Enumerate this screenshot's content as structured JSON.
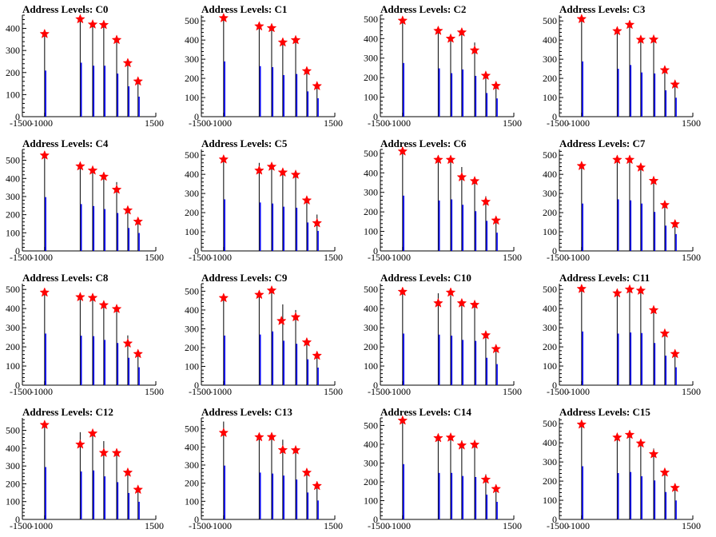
{
  "colors": {
    "histogram": "#0000ff",
    "marker": "#ff0000",
    "axis": "#000000",
    "background": "#ffffff"
  },
  "chart_data": [
    {
      "type": "bar",
      "title": "Address Levels: C0",
      "xlim": [
        -1500,
        1500
      ],
      "ylim": [
        0,
        460
      ],
      "x_ticks": [
        -1500,
        -1000,
        1500
      ],
      "y_ticks": [
        0,
        100,
        200,
        300,
        400
      ],
      "x": [
        -1000,
        -200,
        80,
        330,
        620,
        870,
        1100
      ],
      "values": [
        380,
        445,
        420,
        420,
        355,
        250,
        165
      ],
      "markers": [
        {
          "x": -1000,
          "y": 375
        },
        {
          "x": -200,
          "y": 442
        },
        {
          "x": 80,
          "y": 418
        },
        {
          "x": 330,
          "y": 416
        },
        {
          "x": 620,
          "y": 348
        },
        {
          "x": 870,
          "y": 243
        },
        {
          "x": 1100,
          "y": 160
        }
      ]
    },
    {
      "type": "bar",
      "title": "Address Levels: C1",
      "xlim": [
        -1500,
        1500
      ],
      "ylim": [
        0,
        530
      ],
      "x_ticks": [
        -1500,
        -1000,
        1500
      ],
      "y_ticks": [
        0,
        100,
        200,
        300,
        400,
        500
      ],
      "x": [
        -1000,
        -200,
        80,
        330,
        620,
        870,
        1100
      ],
      "values": [
        525,
        480,
        470,
        395,
        405,
        240,
        175
      ],
      "markers": [
        {
          "x": -1000,
          "y": 515
        },
        {
          "x": -200,
          "y": 472
        },
        {
          "x": 80,
          "y": 463
        },
        {
          "x": 330,
          "y": 388
        },
        {
          "x": 620,
          "y": 400
        },
        {
          "x": 870,
          "y": 238
        },
        {
          "x": 1100,
          "y": 160
        }
      ]
    },
    {
      "type": "bar",
      "title": "Address Levels: C2",
      "xlim": [
        -1500,
        1500
      ],
      "ylim": [
        0,
        520
      ],
      "x_ticks": [
        -1500,
        -1000,
        1500
      ],
      "y_ticks": [
        0,
        100,
        200,
        300,
        400,
        500
      ],
      "x": [
        -1000,
        -200,
        80,
        330,
        620,
        870,
        1100
      ],
      "values": [
        500,
        450,
        405,
        440,
        380,
        220,
        170
      ],
      "markers": [
        {
          "x": -1000,
          "y": 492
        },
        {
          "x": -200,
          "y": 440
        },
        {
          "x": 80,
          "y": 400
        },
        {
          "x": 330,
          "y": 432
        },
        {
          "x": 620,
          "y": 340
        },
        {
          "x": 870,
          "y": 210
        },
        {
          "x": 1100,
          "y": 158
        }
      ]
    },
    {
      "type": "bar",
      "title": "Address Levels: C3",
      "xlim": [
        -1500,
        1500
      ],
      "ylim": [
        0,
        530
      ],
      "x_ticks": [
        -1500,
        -1000,
        1500
      ],
      "y_ticks": [
        0,
        100,
        200,
        300,
        400,
        500
      ],
      "x": [
        -1000,
        -200,
        80,
        330,
        620,
        870,
        1100
      ],
      "values": [
        525,
        455,
        490,
        420,
        410,
        250,
        180
      ],
      "markers": [
        {
          "x": -1000,
          "y": 510
        },
        {
          "x": -200,
          "y": 447
        },
        {
          "x": 80,
          "y": 480
        },
        {
          "x": 330,
          "y": 402
        },
        {
          "x": 620,
          "y": 403
        },
        {
          "x": 870,
          "y": 243
        },
        {
          "x": 1100,
          "y": 168
        }
      ]
    },
    {
      "type": "bar",
      "title": "Address Levels: C4",
      "xlim": [
        -1500,
        1500
      ],
      "ylim": [
        0,
        560
      ],
      "x_ticks": [
        -1500,
        -1000,
        1500
      ],
      "y_ticks": [
        0,
        100,
        200,
        300,
        400,
        500
      ],
      "x": [
        -1000,
        -200,
        80,
        330,
        620,
        870,
        1100
      ],
      "values": [
        540,
        470,
        450,
        420,
        380,
        230,
        180
      ],
      "markers": [
        {
          "x": -1000,
          "y": 527
        },
        {
          "x": -200,
          "y": 467
        },
        {
          "x": 80,
          "y": 444
        },
        {
          "x": 330,
          "y": 410
        },
        {
          "x": 620,
          "y": 338
        },
        {
          "x": 870,
          "y": 224
        },
        {
          "x": 1100,
          "y": 162
        }
      ]
    },
    {
      "type": "bar",
      "title": "Address Levels: C5",
      "xlim": [
        -1500,
        1500
      ],
      "ylim": [
        0,
        530
      ],
      "x_ticks": [
        -1500,
        -1000,
        1500
      ],
      "y_ticks": [
        0,
        100,
        200,
        300,
        400,
        500
      ],
      "x": [
        -1000,
        -200,
        80,
        330,
        620,
        870,
        1100
      ],
      "values": [
        490,
        460,
        450,
        420,
        410,
        270,
        190
      ],
      "markers": [
        {
          "x": -1000,
          "y": 478
        },
        {
          "x": -200,
          "y": 420
        },
        {
          "x": 80,
          "y": 440
        },
        {
          "x": 330,
          "y": 410
        },
        {
          "x": 620,
          "y": 398
        },
        {
          "x": 870,
          "y": 264
        },
        {
          "x": 1100,
          "y": 145
        }
      ]
    },
    {
      "type": "bar",
      "title": "Address Levels: C6",
      "xlim": [
        -1500,
        1500
      ],
      "ylim": [
        0,
        520
      ],
      "x_ticks": [
        -1500,
        -1000,
        1500
      ],
      "y_ticks": [
        0,
        100,
        200,
        300,
        400,
        500
      ],
      "x": [
        -1000,
        -200,
        80,
        330,
        620,
        870,
        1100
      ],
      "values": [
        515,
        470,
        480,
        430,
        370,
        280,
        170
      ],
      "markers": [
        {
          "x": -1000,
          "y": 510
        },
        {
          "x": -200,
          "y": 467
        },
        {
          "x": 80,
          "y": 467
        },
        {
          "x": 330,
          "y": 378
        },
        {
          "x": 620,
          "y": 358
        },
        {
          "x": 870,
          "y": 252
        },
        {
          "x": 1100,
          "y": 156
        }
      ]
    },
    {
      "type": "bar",
      "title": "Address Levels: C7",
      "xlim": [
        -1500,
        1500
      ],
      "ylim": [
        0,
        530
      ],
      "x_ticks": [
        -1500,
        -1000,
        1500
      ],
      "y_ticks": [
        0,
        100,
        200,
        300,
        400,
        500
      ],
      "x": [
        -1000,
        -200,
        80,
        330,
        620,
        870,
        1100
      ],
      "values": [
        450,
        490,
        480,
        450,
        370,
        240,
        160
      ],
      "markers": [
        {
          "x": -1000,
          "y": 444
        },
        {
          "x": -200,
          "y": 476
        },
        {
          "x": 80,
          "y": 476
        },
        {
          "x": 330,
          "y": 436
        },
        {
          "x": 620,
          "y": 366
        },
        {
          "x": 870,
          "y": 240
        },
        {
          "x": 1100,
          "y": 140
        }
      ]
    },
    {
      "type": "bar",
      "title": "Address Levels: C8",
      "xlim": [
        -1500,
        1500
      ],
      "ylim": [
        0,
        530
      ],
      "x_ticks": [
        -1500,
        -1000,
        1500
      ],
      "y_ticks": [
        0,
        100,
        200,
        300,
        400,
        500
      ],
      "x": [
        -1000,
        -200,
        80,
        330,
        620,
        870,
        1100
      ],
      "values": [
        490,
        470,
        465,
        430,
        400,
        260,
        170
      ],
      "markers": [
        {
          "x": -1000,
          "y": 484
        },
        {
          "x": -200,
          "y": 460
        },
        {
          "x": 80,
          "y": 456
        },
        {
          "x": 330,
          "y": 418
        },
        {
          "x": 620,
          "y": 398
        },
        {
          "x": 870,
          "y": 218
        },
        {
          "x": 1100,
          "y": 163
        }
      ]
    },
    {
      "type": "bar",
      "title": "Address Levels: C9",
      "xlim": [
        -1500,
        1500
      ],
      "ylim": [
        0,
        540
      ],
      "x_ticks": [
        -1500,
        -1000,
        1500
      ],
      "y_ticks": [
        0,
        100,
        200,
        300,
        400,
        500
      ],
      "x": [
        -1000,
        -200,
        80,
        330,
        620,
        870,
        1100
      ],
      "values": [
        480,
        490,
        520,
        430,
        400,
        250,
        170
      ],
      "markers": [
        {
          "x": -1000,
          "y": 464
        },
        {
          "x": -200,
          "y": 481
        },
        {
          "x": 80,
          "y": 504
        },
        {
          "x": 300,
          "y": 342
        },
        {
          "x": 620,
          "y": 362
        },
        {
          "x": 870,
          "y": 228
        },
        {
          "x": 1100,
          "y": 157
        }
      ]
    },
    {
      "type": "bar",
      "title": "Address Levels: C10",
      "xlim": [
        -1500,
        1500
      ],
      "ylim": [
        0,
        530
      ],
      "x_ticks": [
        -1500,
        -1000,
        1500
      ],
      "y_ticks": [
        0,
        100,
        200,
        300,
        400,
        500
      ],
      "x": [
        -1000,
        -200,
        80,
        330,
        620,
        870,
        1100
      ],
      "values": [
        490,
        480,
        470,
        430,
        420,
        260,
        200
      ],
      "markers": [
        {
          "x": -1000,
          "y": 488
        },
        {
          "x": -200,
          "y": 428
        },
        {
          "x": 80,
          "y": 484
        },
        {
          "x": 330,
          "y": 428
        },
        {
          "x": 620,
          "y": 420
        },
        {
          "x": 870,
          "y": 261
        },
        {
          "x": 1100,
          "y": 189
        }
      ]
    },
    {
      "type": "bar",
      "title": "Address Levels: C11",
      "xlim": [
        -1500,
        1500
      ],
      "ylim": [
        0,
        530
      ],
      "x_ticks": [
        -1500,
        -1000,
        1500
      ],
      "y_ticks": [
        0,
        100,
        200,
        300,
        400,
        500
      ],
      "x": [
        -1000,
        -200,
        80,
        330,
        620,
        870,
        1100
      ],
      "values": [
        510,
        490,
        500,
        495,
        400,
        280,
        170
      ],
      "markers": [
        {
          "x": -1000,
          "y": 503
        },
        {
          "x": -200,
          "y": 480
        },
        {
          "x": 80,
          "y": 500
        },
        {
          "x": 330,
          "y": 494
        },
        {
          "x": 620,
          "y": 392
        },
        {
          "x": 870,
          "y": 270
        },
        {
          "x": 1100,
          "y": 163
        }
      ]
    },
    {
      "type": "bar",
      "title": "Address Levels: C12",
      "xlim": [
        -1500,
        1500
      ],
      "ylim": [
        0,
        570
      ],
      "x_ticks": [
        -1500,
        -1000,
        1500
      ],
      "y_ticks": [
        0,
        100,
        200,
        300,
        400,
        500
      ],
      "x": [
        -1000,
        -200,
        80,
        330,
        620,
        870,
        1100
      ],
      "values": [
        535,
        490,
        500,
        440,
        380,
        270,
        180
      ],
      "markers": [
        {
          "x": -1000,
          "y": 531
        },
        {
          "x": -200,
          "y": 421
        },
        {
          "x": 80,
          "y": 483
        },
        {
          "x": 330,
          "y": 374
        },
        {
          "x": 620,
          "y": 373
        },
        {
          "x": 870,
          "y": 263
        },
        {
          "x": 1100,
          "y": 167
        }
      ]
    },
    {
      "type": "bar",
      "title": "Address Levels: C13",
      "xlim": [
        -1500,
        1500
      ],
      "ylim": [
        0,
        560
      ],
      "x_ticks": [
        -1500,
        -1000,
        1500
      ],
      "y_ticks": [
        0,
        100,
        200,
        300,
        400,
        500
      ],
      "x": [
        -1000,
        -200,
        80,
        330,
        620,
        870,
        1100
      ],
      "values": [
        540,
        470,
        460,
        440,
        400,
        270,
        190
      ],
      "markers": [
        {
          "x": -1000,
          "y": 478
        },
        {
          "x": -200,
          "y": 454
        },
        {
          "x": 80,
          "y": 455
        },
        {
          "x": 330,
          "y": 383
        },
        {
          "x": 620,
          "y": 382
        },
        {
          "x": 870,
          "y": 258
        },
        {
          "x": 1100,
          "y": 185
        }
      ]
    },
    {
      "type": "bar",
      "title": "Address Levels: C14",
      "xlim": [
        -1500,
        1500
      ],
      "ylim": [
        0,
        540
      ],
      "x_ticks": [
        -1500,
        -1000,
        1500
      ],
      "y_ticks": [
        0,
        100,
        200,
        300,
        400,
        500
      ],
      "x": [
        -1000,
        -200,
        80,
        330,
        620,
        870,
        1100
      ],
      "values": [
        535,
        450,
        450,
        420,
        410,
        240,
        170
      ],
      "markers": [
        {
          "x": -1000,
          "y": 526
        },
        {
          "x": -200,
          "y": 433
        },
        {
          "x": 80,
          "y": 436
        },
        {
          "x": 330,
          "y": 394
        },
        {
          "x": 620,
          "y": 398
        },
        {
          "x": 870,
          "y": 212
        },
        {
          "x": 1100,
          "y": 162
        }
      ]
    },
    {
      "type": "bar",
      "title": "Address Levels: C15",
      "xlim": [
        -1500,
        1500
      ],
      "ylim": [
        0,
        530
      ],
      "x_ticks": [
        -1500,
        -1000,
        1500
      ],
      "y_ticks": [
        0,
        100,
        200,
        300,
        400,
        500
      ],
      "x": [
        -1000,
        -200,
        80,
        330,
        620,
        870,
        1100
      ],
      "values": [
        505,
        440,
        450,
        410,
        370,
        260,
        180
      ],
      "markers": [
        {
          "x": -1000,
          "y": 496
        },
        {
          "x": -200,
          "y": 428
        },
        {
          "x": 80,
          "y": 442
        },
        {
          "x": 330,
          "y": 397
        },
        {
          "x": 620,
          "y": 341
        },
        {
          "x": 870,
          "y": 245
        },
        {
          "x": 1100,
          "y": 165
        }
      ]
    }
  ]
}
